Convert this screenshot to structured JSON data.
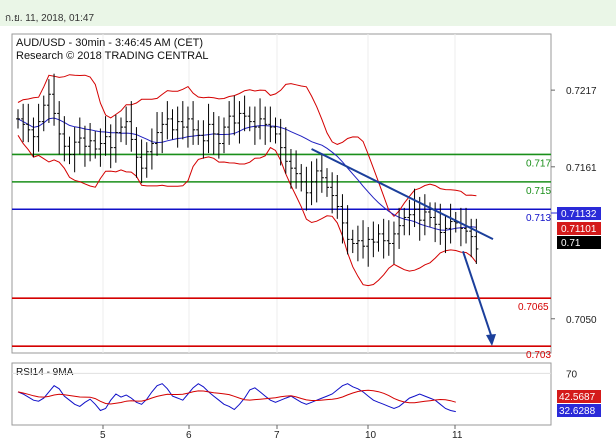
{
  "header": {
    "timestamp": "ก.ย. 11, 2018, 01:47"
  },
  "colors": {
    "candle": "#000000",
    "bollinger": "#d40000",
    "moving_average": "#2020c0",
    "support_green": "#1a8f1a",
    "pivot_blue": "#1010c8",
    "resistance_red": "#d40000",
    "trend_arrow": "#1b3f9b",
    "rsi_line": "#1010c8",
    "rsi_ma": "#d40000",
    "badge_blue": "#2a2ad8",
    "badge_red": "#d41a1a",
    "badge_black": "#000000"
  },
  "chart_data": [
    {
      "type": "candlestick",
      "title": "AUD/USD - 30min - 3:46:45 AM (CET)",
      "subtitle": "Research © 2018 TRADING CENTRAL",
      "x_tick_labels": [
        "5",
        "6",
        "7",
        "10",
        "11"
      ],
      "y_tick_labels": [
        "0.7217",
        "0.7161",
        "0.7050"
      ],
      "y_range": [
        0.7025,
        0.7258
      ],
      "price_path": [
        0.7196,
        0.7192,
        0.7188,
        0.7183,
        0.7194,
        0.7206,
        0.7214,
        0.72,
        0.7185,
        0.7176,
        0.717,
        0.7179,
        0.7182,
        0.7176,
        0.718,
        0.7174,
        0.7178,
        0.7183,
        0.7175,
        0.7186,
        0.719,
        0.7194,
        0.7181,
        0.7168,
        0.716,
        0.7172,
        0.7178,
        0.7186,
        0.7192,
        0.7196,
        0.7188,
        0.7194,
        0.719,
        0.7196,
        0.7188,
        0.7184,
        0.718,
        0.7192,
        0.7185,
        0.7178,
        0.719,
        0.7198,
        0.7193,
        0.72,
        0.7198,
        0.7194,
        0.719,
        0.7196,
        0.7192,
        0.719,
        0.7185,
        0.7175,
        0.7165,
        0.716,
        0.7156,
        0.715,
        0.7142,
        0.715,
        0.7158,
        0.7153,
        0.7146,
        0.714,
        0.7132,
        0.712,
        0.7108,
        0.7105,
        0.7107,
        0.7103,
        0.7108,
        0.7106,
        0.7112,
        0.7107,
        0.7105,
        0.7112,
        0.7118,
        0.7124,
        0.7126,
        0.713,
        0.7122,
        0.7128,
        0.7124,
        0.7119,
        0.7113,
        0.7116,
        0.7121,
        0.712,
        0.7116,
        0.7114,
        0.711,
        0.7101
      ],
      "levels": [
        {
          "value": 0.717,
          "label": "0.717",
          "color": "#1a8f1a"
        },
        {
          "value": 0.715,
          "label": "0.715",
          "color": "#1a8f1a"
        },
        {
          "value": 0.713,
          "label": "0.713",
          "color": "#1010c8"
        },
        {
          "value": 0.7065,
          "label": "0.7065",
          "color": "#d40000"
        },
        {
          "value": 0.703,
          "label": "0.703",
          "color": "#d40000"
        }
      ],
      "trendline": {
        "from": [
          57,
          0.7174
        ],
        "to": [
          87,
          0.7114
        ]
      },
      "forecast_arrow": {
        "from": [
          88,
          0.7108
        ],
        "to": [
          96,
          0.7033
        ]
      },
      "badges": [
        {
          "label": "0.71132",
          "color": "#2a2ad8"
        },
        {
          "label": "0.71101",
          "color": "#d41a1a"
        },
        {
          "label": "0.71",
          "color": "#000000"
        }
      ]
    },
    {
      "type": "line",
      "title": "RSI14 - 9MA",
      "y_tick_labels": [
        "70"
      ],
      "y_range": [
        20,
        80
      ],
      "series": [],
      "rsi_path": [
        52,
        50,
        47,
        44,
        43,
        46,
        52,
        58,
        55,
        48,
        44,
        40,
        38,
        42,
        45,
        40,
        34,
        36,
        44,
        50,
        47,
        49,
        46,
        42,
        40,
        45,
        52,
        58,
        60,
        55,
        48,
        46,
        44,
        50,
        56,
        60,
        57,
        52,
        48,
        44,
        40,
        38,
        35,
        40,
        46,
        54,
        56,
        52,
        48,
        44,
        42,
        44,
        46,
        48,
        45,
        42,
        40,
        42,
        44,
        46,
        48,
        50,
        54,
        58,
        60,
        57,
        55,
        52,
        48,
        44,
        42,
        40,
        38,
        36,
        38,
        42,
        46,
        48,
        50,
        48,
        46,
        44,
        40,
        36,
        34,
        33
      ],
      "value_badges": [
        {
          "label": "42.5687",
          "color": "#d41a1a"
        },
        {
          "label": "32.6288",
          "color": "#2a2ad8"
        }
      ]
    }
  ]
}
